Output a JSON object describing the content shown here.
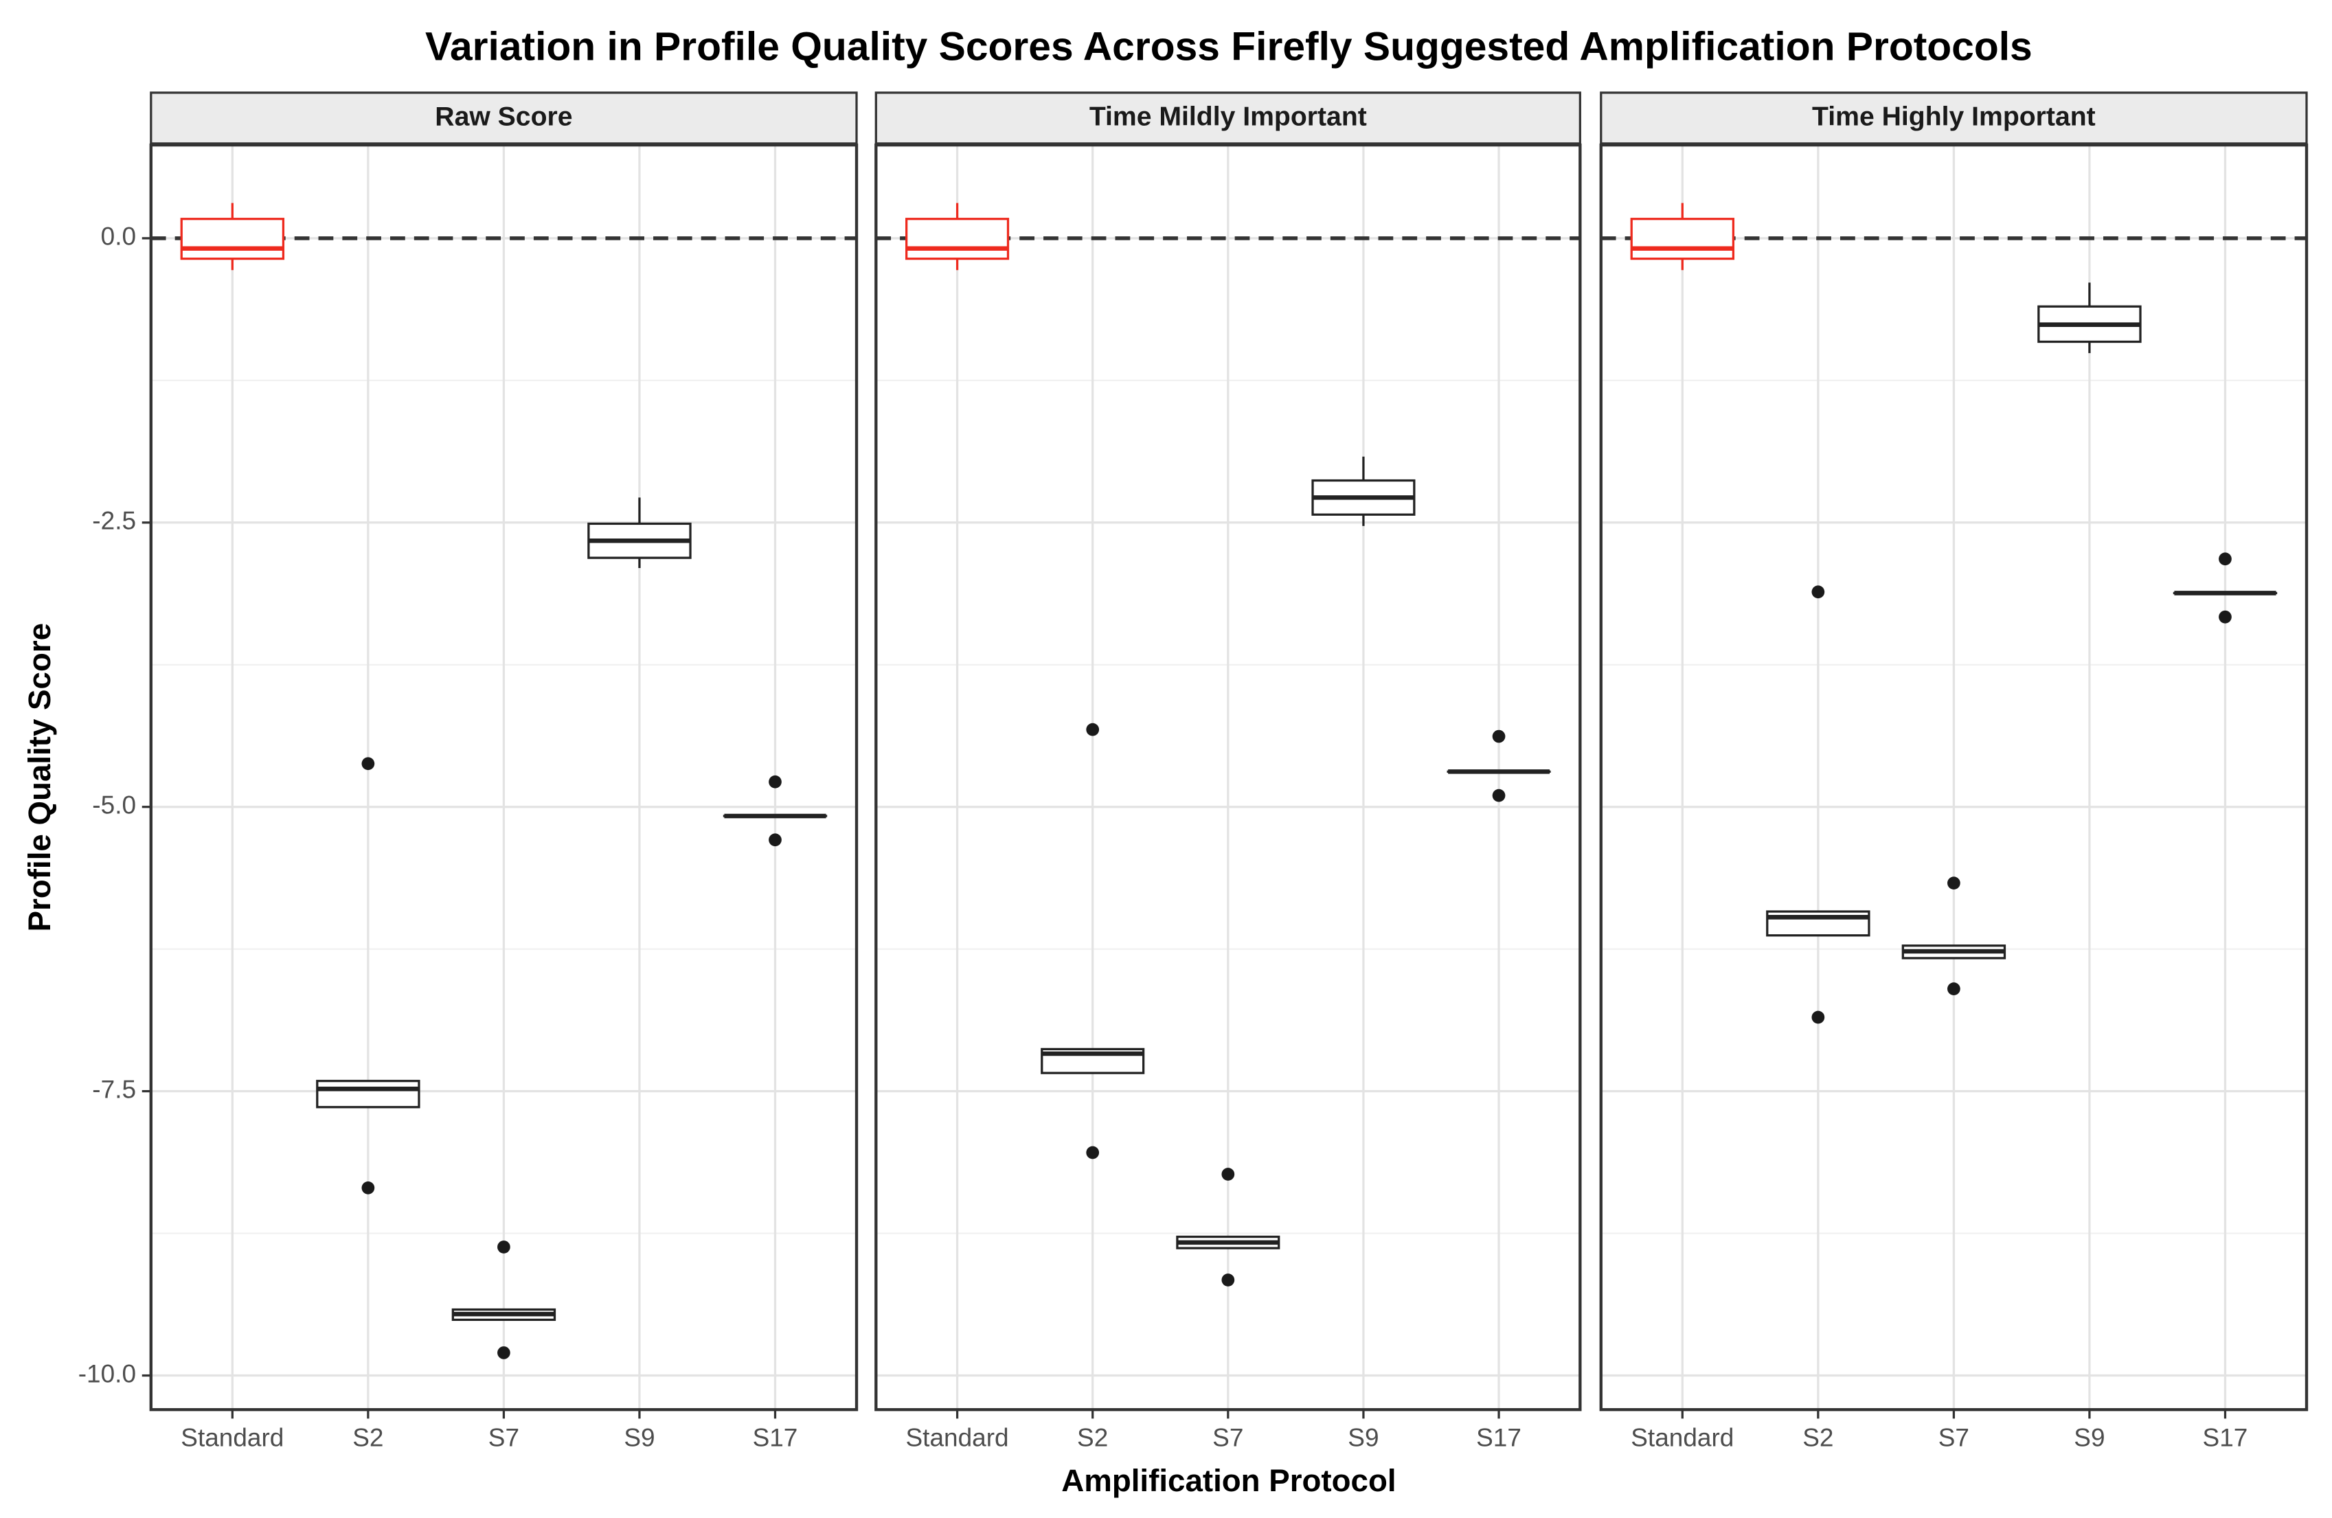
{
  "chart_data": {
    "type": "box",
    "title": "Variation in Profile Quality Scores Across Firefly Suggested Amplification Protocols",
    "x_label": "Amplification Protocol",
    "y_label": "Profile Quality Score",
    "categories": [
      "Standard",
      "S2",
      "S7",
      "S9",
      "S17"
    ],
    "ylim": [
      -10.3,
      0.82
    ],
    "yticks": [
      {
        "value": 0,
        "label": "0.0"
      },
      -2.5,
      {
        "value": -5,
        "label": "-5.0"
      },
      -7.5,
      {
        "value": -10,
        "label": "-10.0"
      }
    ],
    "y_minor_ticks": [
      -1.25,
      -3.75,
      -6.25,
      -8.75
    ],
    "grid": true,
    "reference_line": 0,
    "facets": [
      {
        "title": "Raw Score",
        "boxes": [
          {
            "color": "#ee2a1e",
            "whisker_low": -0.28,
            "q1": -0.18,
            "median": -0.09,
            "q3": 0.17,
            "whisker_high": 0.31,
            "outliers": []
          },
          {
            "color": "#222222",
            "whisker_low": -7.64,
            "q1": -7.64,
            "median": -7.48,
            "q3": -7.41,
            "whisker_high": -7.41,
            "outliers": [
              -4.62,
              -8.35
            ]
          },
          {
            "color": "#222222",
            "whisker_low": -9.51,
            "q1": -9.51,
            "median": -9.46,
            "q3": -9.42,
            "whisker_high": -9.42,
            "outliers": [
              -8.87,
              -9.8
            ]
          },
          {
            "color": "#222222",
            "whisker_low": -2.9,
            "q1": -2.81,
            "median": -2.66,
            "q3": -2.51,
            "whisker_high": -2.28,
            "outliers": []
          },
          {
            "color": "#222222",
            "whisker_low": -5.08,
            "q1": -5.08,
            "median": -5.08,
            "q3": -5.08,
            "whisker_high": -5.08,
            "outliers": [
              -4.78,
              -5.29
            ]
          }
        ]
      },
      {
        "title": "Time Mildly Important",
        "boxes": [
          {
            "color": "#ee2a1e",
            "whisker_low": -0.28,
            "q1": -0.18,
            "median": -0.09,
            "q3": 0.17,
            "whisker_high": 0.31,
            "outliers": []
          },
          {
            "color": "#222222",
            "whisker_low": -7.34,
            "q1": -7.34,
            "median": -7.17,
            "q3": -7.13,
            "whisker_high": -7.13,
            "outliers": [
              -4.32,
              -8.04
            ]
          },
          {
            "color": "#222222",
            "whisker_low": -8.88,
            "q1": -8.88,
            "median": -8.83,
            "q3": -8.78,
            "whisker_high": -8.78,
            "outliers": [
              -8.23,
              -9.16
            ]
          },
          {
            "color": "#222222",
            "whisker_low": -2.53,
            "q1": -2.43,
            "median": -2.28,
            "q3": -2.13,
            "whisker_high": -1.92,
            "outliers": []
          },
          {
            "color": "#222222",
            "whisker_low": -4.69,
            "q1": -4.69,
            "median": -4.69,
            "q3": -4.69,
            "whisker_high": -4.69,
            "outliers": [
              -4.38,
              -4.9
            ]
          }
        ]
      },
      {
        "title": "Time Highly Important",
        "boxes": [
          {
            "color": "#ee2a1e",
            "whisker_low": -0.28,
            "q1": -0.18,
            "median": -0.09,
            "q3": 0.17,
            "whisker_high": 0.31,
            "outliers": []
          },
          {
            "color": "#222222",
            "whisker_low": -6.13,
            "q1": -6.13,
            "median": -5.97,
            "q3": -5.92,
            "whisker_high": -5.92,
            "outliers": [
              -3.11,
              -6.85
            ]
          },
          {
            "color": "#222222",
            "whisker_low": -6.33,
            "q1": -6.33,
            "median": -6.27,
            "q3": -6.22,
            "whisker_high": -6.22,
            "outliers": [
              -5.67,
              -6.6
            ]
          },
          {
            "color": "#222222",
            "whisker_low": -1.01,
            "q1": -0.91,
            "median": -0.76,
            "q3": -0.6,
            "whisker_high": -0.39,
            "outliers": []
          },
          {
            "color": "#222222",
            "whisker_low": -3.12,
            "q1": -3.12,
            "median": -3.12,
            "q3": -3.12,
            "whisker_high": -3.12,
            "outliers": [
              -2.82,
              -3.33
            ]
          }
        ]
      }
    ]
  }
}
